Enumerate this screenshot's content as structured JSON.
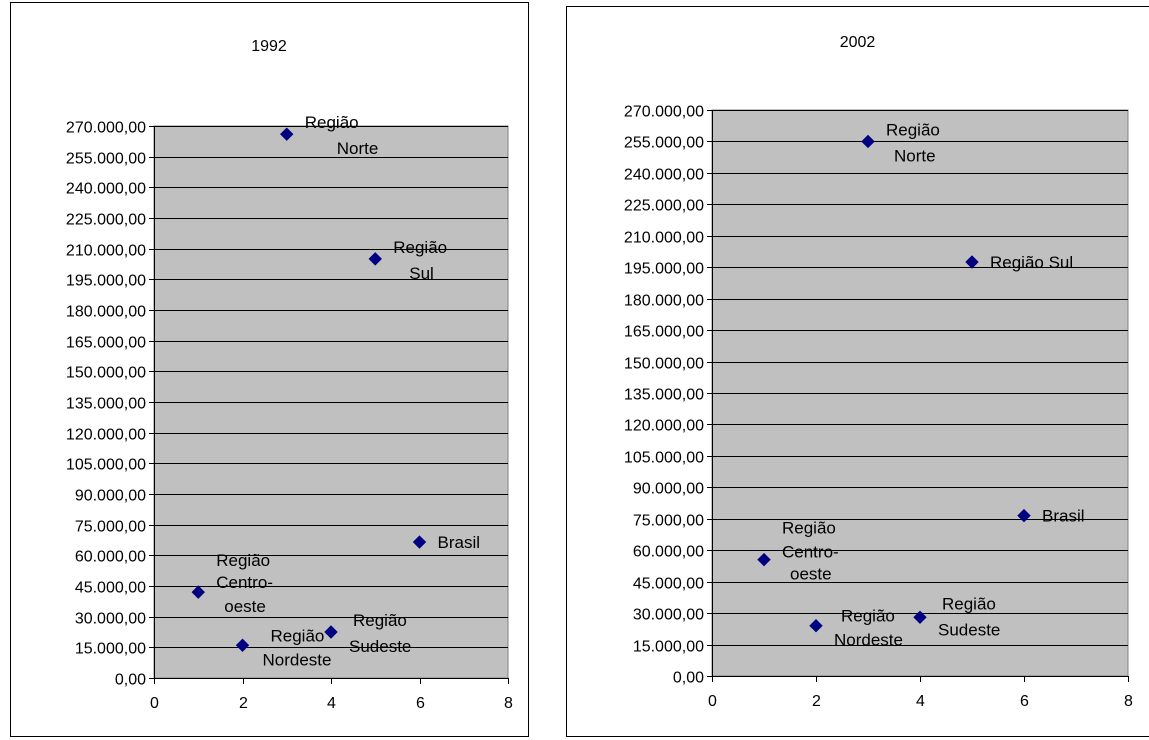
{
  "chart_data": [
    {
      "type": "scatter",
      "title": "1992",
      "xlim": [
        0,
        8
      ],
      "x_ticks": [
        0,
        2,
        4,
        6,
        8
      ],
      "ylim": [
        0,
        270000
      ],
      "y_tick_step": 15000,
      "y_tick_labels": [
        "0,00",
        "15.000,00",
        "30.000,00",
        "45.000,00",
        "60.000,00",
        "75.000,00",
        "90.000,00",
        "105.000,00",
        "120.000,00",
        "135.000,00",
        "150.000,00",
        "165.000,00",
        "180.000,00",
        "195.000,00",
        "210.000,00",
        "225.000,00",
        "240.000,00",
        "255.000,00",
        "270.000,00"
      ],
      "grid": true,
      "marker_color": "#000080",
      "plot_background": "#c0c0c0",
      "points": [
        {
          "label": "Região Centro-oeste",
          "label_lines": [
            "Região",
            "Centro-",
            "oeste"
          ],
          "x": 1,
          "y": 42000
        },
        {
          "label": "Região Nordeste",
          "label_lines": [
            "Região",
            "Nordeste"
          ],
          "x": 2,
          "y": 16000
        },
        {
          "label": "Região Norte",
          "label_lines": [
            "Região",
            "Norte"
          ],
          "x": 3,
          "y": 266000
        },
        {
          "label": "Região Sudeste",
          "label_lines": [
            "Região",
            "Sudeste"
          ],
          "x": 4,
          "y": 22500
        },
        {
          "label": "Região Sul",
          "label_lines": [
            "Região",
            "Sul"
          ],
          "x": 5,
          "y": 205000
        },
        {
          "label": "Brasil",
          "label_lines": [
            "Brasil"
          ],
          "x": 6,
          "y": 66500
        }
      ]
    },
    {
      "type": "scatter",
      "title": "2002",
      "xlim": [
        0,
        8
      ],
      "x_ticks": [
        0,
        2,
        4,
        6,
        8
      ],
      "ylim": [
        0,
        270000
      ],
      "y_tick_step": 15000,
      "y_tick_labels": [
        "0,00",
        "15.000,00",
        "30.000,00",
        "45.000,00",
        "60.000,00",
        "75.000,00",
        "90.000,00",
        "105.000,00",
        "120.000,00",
        "135.000,00",
        "150.000,00",
        "165.000,00",
        "180.000,00",
        "195.000,00",
        "210.000,00",
        "225.000,00",
        "240.000,00",
        "255.000,00",
        "270.000,00"
      ],
      "grid": true,
      "marker_color": "#000080",
      "plot_background": "#c0c0c0",
      "points": [
        {
          "label": "Região Centro-oeste",
          "label_lines": [
            "Região",
            "Centro-",
            "oeste"
          ],
          "x": 1,
          "y": 55500
        },
        {
          "label": "Região Nordeste",
          "label_lines": [
            "Região",
            "Nordeste"
          ],
          "x": 2,
          "y": 24000
        },
        {
          "label": "Região Norte",
          "label_lines": [
            "Região",
            "Norte"
          ],
          "x": 3,
          "y": 255000
        },
        {
          "label": "Região Sudeste",
          "label_lines": [
            "Região",
            "Sudeste"
          ],
          "x": 4,
          "y": 28000
        },
        {
          "label": "Região Sul",
          "label_lines": [
            "Região Sul"
          ],
          "x": 5,
          "y": 197500
        },
        {
          "label": "Brasil",
          "label_lines": [
            "Brasil"
          ],
          "x": 6,
          "y": 76500
        }
      ]
    }
  ]
}
